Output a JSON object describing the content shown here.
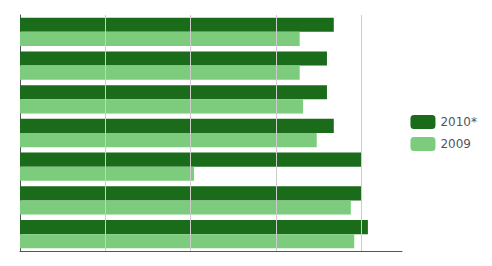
{
  "chart_data": {
    "type": "bar",
    "orientation": "horizontal",
    "categories": [
      null,
      null,
      null,
      null,
      null,
      null,
      null
    ],
    "series": [
      {
        "name": "2010*",
        "color": "#1a6b1a",
        "values": [
          1.02,
          1.0,
          1.0,
          0.92,
          0.9,
          0.9,
          0.92
        ]
      },
      {
        "name": "2009",
        "color": "#7dcc7d",
        "values": [
          0.98,
          0.97,
          0.51,
          0.87,
          0.83,
          0.82,
          0.82
        ]
      }
    ],
    "xlim": [
      0,
      1.12
    ],
    "xticks": [
      0.25,
      0.5,
      0.75,
      1.0
    ],
    "grid": true,
    "legend": "right",
    "tick_labels": false
  }
}
